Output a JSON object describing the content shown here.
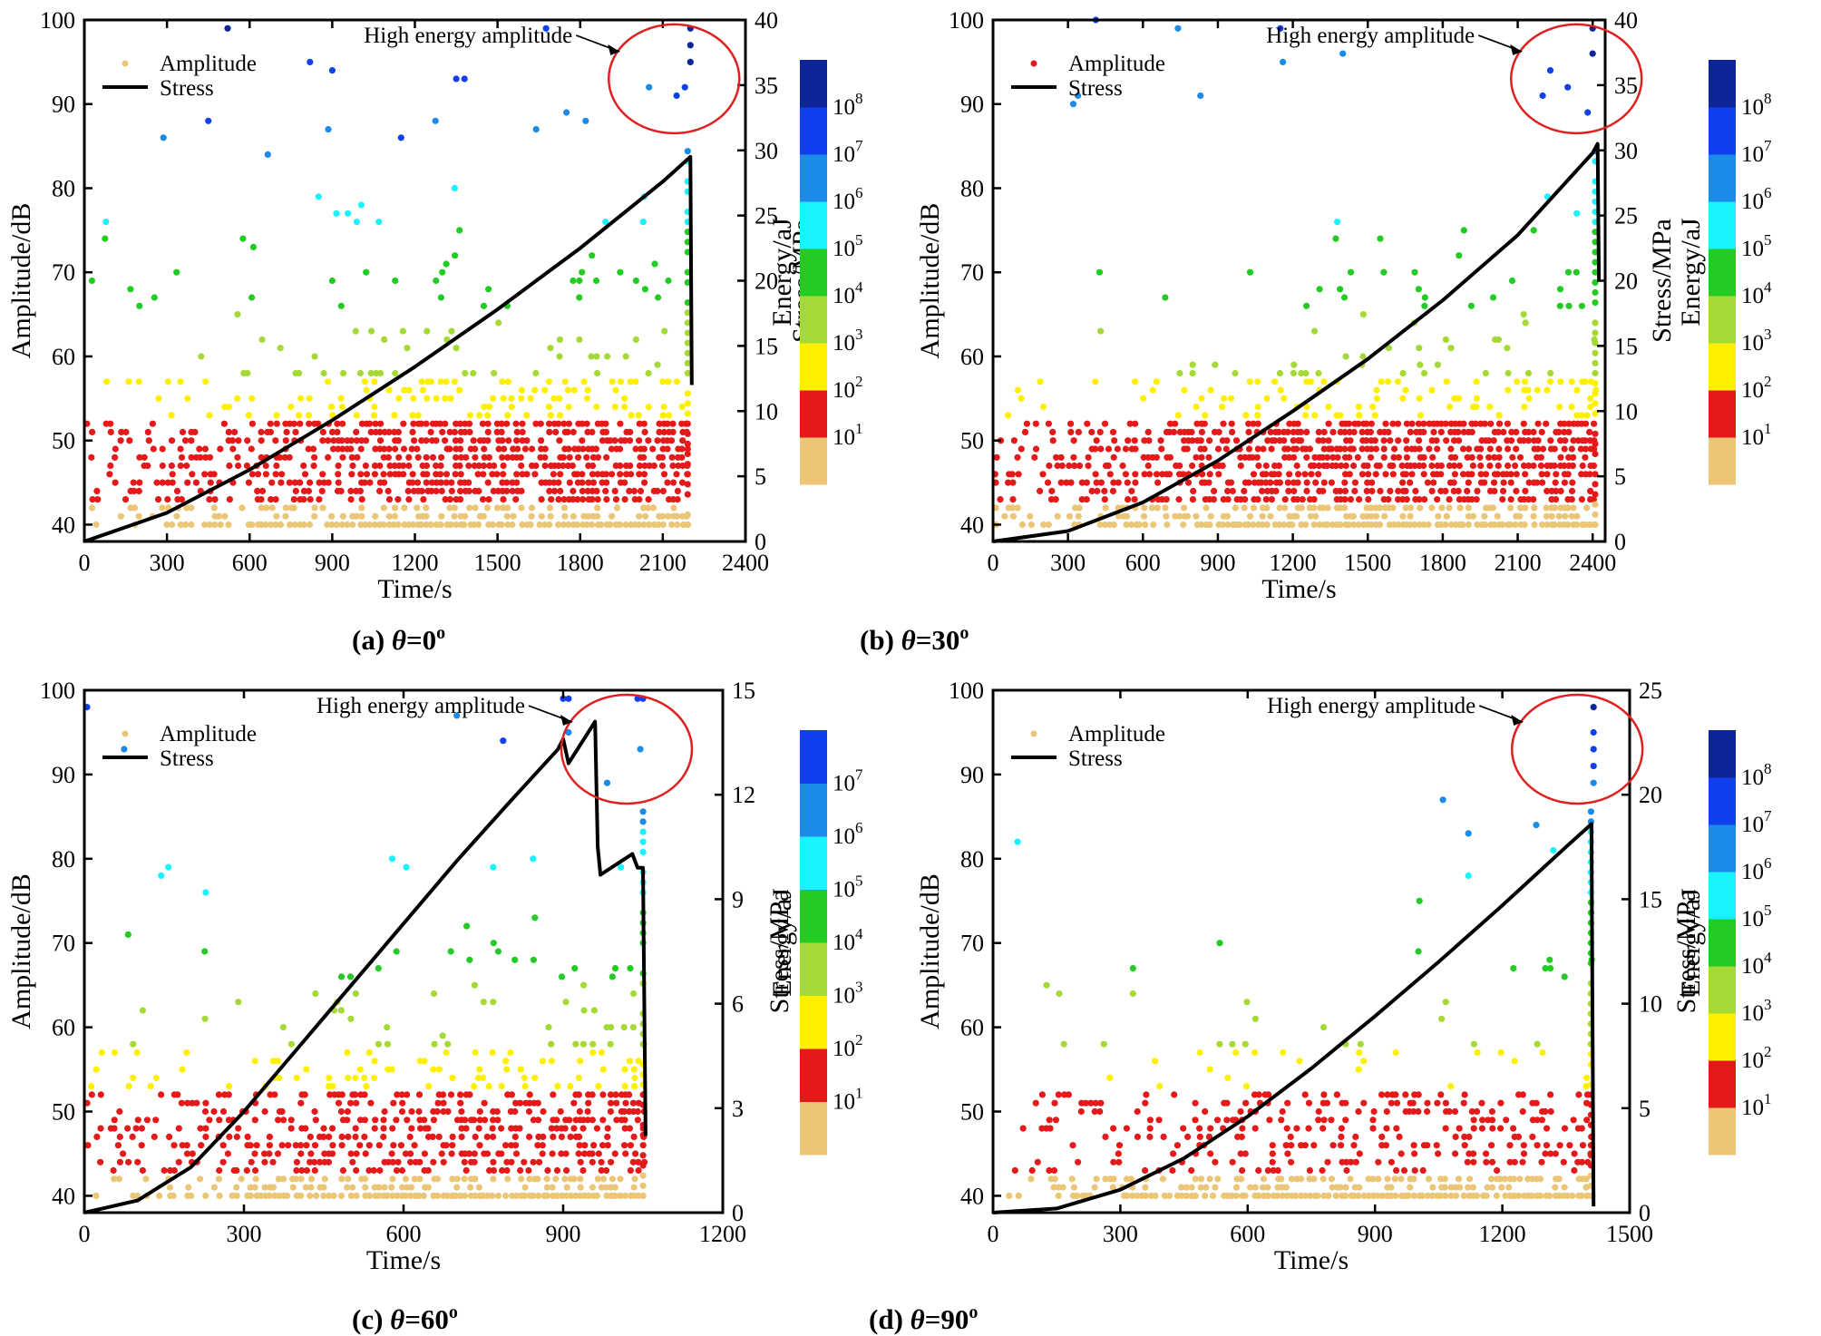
{
  "figure": {
    "energy_colors": [
      "#ebc677",
      "#e41a1a",
      "#fff000",
      "#a5d936",
      "#22cc22",
      "#19f2ff",
      "#1c8ae8",
      "#1040ee",
      "#0c2496"
    ],
    "stress_color": "#000000",
    "annotation_color": "#e02020"
  },
  "chart_data": [
    {
      "type": "scatter",
      "panel_label": "(a) ",
      "theta_symbol": "θ",
      "angle_text": "=0",
      "degree": "o",
      "xlabel": "Time/s",
      "ylabel_left": "Amplitude/dB",
      "ylabel_right": "Stress/MPa",
      "colorbar_label": "Energy/aJ",
      "xlim": [
        0,
        2400
      ],
      "ylim_left": [
        38,
        100
      ],
      "ylim_right": [
        0,
        40
      ],
      "xticks": [
        0,
        300,
        600,
        900,
        1200,
        1500,
        1800,
        2100,
        2400
      ],
      "yticks_left": [
        40,
        50,
        60,
        70,
        80,
        90,
        100
      ],
      "yticks_right": [
        0,
        5,
        10,
        15,
        20,
        25,
        30,
        35,
        40
      ],
      "colorbar_ticks": [
        {
          "base": "10",
          "exp": "1"
        },
        {
          "base": "10",
          "exp": "2"
        },
        {
          "base": "10",
          "exp": "3"
        },
        {
          "base": "10",
          "exp": "4"
        },
        {
          "base": "10",
          "exp": "5"
        },
        {
          "base": "10",
          "exp": "6"
        },
        {
          "base": "10",
          "exp": "7"
        },
        {
          "base": "10",
          "exp": "8"
        }
      ],
      "legend": {
        "amplitude": "Amplitude",
        "stress": "Stress",
        "amplitude_color": "#ebc677"
      },
      "annotation": "High energy amplitude",
      "end_time": 2200,
      "stress_curve": [
        [
          0,
          0
        ],
        [
          300,
          2.2
        ],
        [
          600,
          5.5
        ],
        [
          900,
          9.3
        ],
        [
          1200,
          13.4
        ],
        [
          1500,
          17.8
        ],
        [
          1800,
          22.5
        ],
        [
          2100,
          27.6
        ],
        [
          2200,
          29.5
        ],
        [
          2205,
          12.0
        ]
      ],
      "high_energy_points": [
        [
          520,
          99,
          8
        ],
        [
          900,
          94,
          7
        ],
        [
          450,
          88,
          7
        ],
        [
          1350,
          93,
          7
        ],
        [
          1380,
          93,
          7
        ],
        [
          1150,
          86,
          7
        ],
        [
          1640,
          87,
          6
        ],
        [
          1750,
          89,
          6
        ],
        [
          1820,
          88,
          6
        ],
        [
          2050,
          92,
          6
        ],
        [
          2150,
          91,
          7
        ],
        [
          2180,
          92,
          7
        ],
        [
          2200,
          99,
          8
        ],
        [
          2200,
          97,
          8
        ],
        [
          2200,
          95,
          8
        ]
      ],
      "cloud": {
        "density": 1.0,
        "mid": 0.6,
        "upper": 0.28
      }
    },
    {
      "type": "scatter",
      "panel_label": "(b) ",
      "theta_symbol": "θ",
      "angle_text": "=30",
      "degree": "o",
      "xlabel": "Time/s",
      "ylabel_left": "Amplitude/dB",
      "ylabel_right": "Stress/MPa",
      "colorbar_label": "Energy/aJ",
      "xlim": [
        0,
        2450
      ],
      "ylim_left": [
        38,
        100
      ],
      "ylim_right": [
        0,
        40
      ],
      "xticks": [
        0,
        300,
        600,
        900,
        1200,
        1500,
        1800,
        2100,
        2400
      ],
      "yticks_left": [
        40,
        50,
        60,
        70,
        80,
        90,
        100
      ],
      "yticks_right": [
        0,
        5,
        10,
        15,
        20,
        25,
        30,
        35,
        40
      ],
      "colorbar_ticks": [
        {
          "base": "10",
          "exp": "1"
        },
        {
          "base": "10",
          "exp": "2"
        },
        {
          "base": "10",
          "exp": "3"
        },
        {
          "base": "10",
          "exp": "4"
        },
        {
          "base": "10",
          "exp": "5"
        },
        {
          "base": "10",
          "exp": "6"
        },
        {
          "base": "10",
          "exp": "7"
        },
        {
          "base": "10",
          "exp": "8"
        }
      ],
      "legend": {
        "amplitude": "Amplitude",
        "stress": "Stress",
        "amplitude_color": "#e41a1a"
      },
      "annotation": "High energy amplitude",
      "end_time": 2420,
      "stress_curve": [
        [
          0,
          0
        ],
        [
          300,
          0.8
        ],
        [
          600,
          3.0
        ],
        [
          900,
          6.2
        ],
        [
          1200,
          10.0
        ],
        [
          1500,
          14.0
        ],
        [
          1800,
          18.5
        ],
        [
          2100,
          23.5
        ],
        [
          2400,
          29.8
        ],
        [
          2420,
          30.5
        ],
        [
          2425,
          20.0
        ]
      ],
      "high_energy_points": [
        [
          740,
          99,
          6
        ],
        [
          1150,
          99,
          7
        ],
        [
          1400,
          96,
          6
        ],
        [
          1160,
          95,
          6
        ],
        [
          830,
          91,
          6
        ],
        [
          2200,
          91,
          7
        ],
        [
          2300,
          92,
          7
        ],
        [
          2400,
          99,
          8
        ],
        [
          2400,
          96,
          8
        ],
        [
          2380,
          89,
          7
        ]
      ],
      "cloud": {
        "density": 1.0,
        "mid": 0.5,
        "upper": 0.22
      }
    },
    {
      "type": "scatter",
      "panel_label": "(c) ",
      "theta_symbol": "θ",
      "angle_text": "=60",
      "degree": "o",
      "xlabel": "Time/s",
      "ylabel_left": "Amplitude/dB",
      "ylabel_right": "Stress/MPa",
      "colorbar_label": "Energy/aJ",
      "xlim": [
        0,
        1200
      ],
      "ylim_left": [
        38,
        100
      ],
      "ylim_right": [
        0,
        15
      ],
      "xticks": [
        0,
        300,
        600,
        900,
        1200
      ],
      "yticks_left": [
        40,
        50,
        60,
        70,
        80,
        90,
        100
      ],
      "yticks_right": [
        0,
        3,
        6,
        9,
        12,
        15
      ],
      "colorbar_ticks": [
        {
          "base": "10",
          "exp": "1"
        },
        {
          "base": "10",
          "exp": "2"
        },
        {
          "base": "10",
          "exp": "3"
        },
        {
          "base": "10",
          "exp": "4"
        },
        {
          "base": "10",
          "exp": "5"
        },
        {
          "base": "10",
          "exp": "6"
        },
        {
          "base": "10",
          "exp": "7"
        }
      ],
      "legend": {
        "amplitude": "Amplitude",
        "stress": "Stress",
        "amplitude_color": "#ebc677"
      },
      "annotation": "High energy amplitude",
      "end_time": 1055,
      "stress_curve": [
        [
          0,
          0
        ],
        [
          100,
          0.35
        ],
        [
          200,
          1.3
        ],
        [
          300,
          2.9
        ],
        [
          400,
          4.7
        ],
        [
          500,
          6.5
        ],
        [
          600,
          8.3
        ],
        [
          700,
          10.1
        ],
        [
          800,
          11.8
        ],
        [
          890,
          13.3
        ],
        [
          900,
          13.6
        ],
        [
          910,
          12.9
        ],
        [
          960,
          14.1
        ],
        [
          965,
          10.5
        ],
        [
          970,
          9.7
        ],
        [
          1010,
          10.1
        ],
        [
          1030,
          10.3
        ],
        [
          1040,
          9.9
        ],
        [
          1050,
          9.9
        ],
        [
          1055,
          2.2
        ]
      ],
      "high_energy_points": [
        [
          900,
          99,
          7
        ],
        [
          910,
          99,
          7
        ],
        [
          1040,
          99,
          7
        ],
        [
          1050,
          99,
          7
        ],
        [
          700,
          97,
          6
        ],
        [
          910,
          95,
          6
        ],
        [
          1045,
          93,
          6
        ]
      ],
      "cloud": {
        "density": 0.75,
        "mid": 0.55,
        "upper": 0.3
      }
    },
    {
      "type": "scatter",
      "panel_label": "(d) ",
      "theta_symbol": "θ",
      "angle_text": "=90",
      "degree": "o",
      "xlabel": "Time/s",
      "ylabel_left": "Amplitude/dB",
      "ylabel_right": "Stress/MPa",
      "colorbar_label": "Energy/aJ",
      "xlim": [
        0,
        1500
      ],
      "ylim_left": [
        38,
        100
      ],
      "ylim_right": [
        0,
        25
      ],
      "xticks": [
        0,
        300,
        600,
        900,
        1200,
        1500
      ],
      "yticks_left": [
        40,
        50,
        60,
        70,
        80,
        90,
        100
      ],
      "yticks_right": [
        0,
        5,
        10,
        15,
        20,
        25
      ],
      "colorbar_ticks": [
        {
          "base": "10",
          "exp": "1"
        },
        {
          "base": "10",
          "exp": "2"
        },
        {
          "base": "10",
          "exp": "3"
        },
        {
          "base": "10",
          "exp": "4"
        },
        {
          "base": "10",
          "exp": "5"
        },
        {
          "base": "10",
          "exp": "6"
        },
        {
          "base": "10",
          "exp": "7"
        },
        {
          "base": "10",
          "exp": "8"
        }
      ],
      "legend": {
        "amplitude": "Amplitude",
        "stress": "Stress",
        "amplitude_color": "#ebc677"
      },
      "annotation": "High energy amplitude",
      "end_time": 1415,
      "stress_curve": [
        [
          0,
          0
        ],
        [
          150,
          0.2
        ],
        [
          300,
          1.1
        ],
        [
          450,
          2.6
        ],
        [
          600,
          4.6
        ],
        [
          750,
          6.9
        ],
        [
          900,
          9.4
        ],
        [
          1050,
          12.0
        ],
        [
          1200,
          14.7
        ],
        [
          1350,
          17.5
        ],
        [
          1410,
          18.6
        ],
        [
          1415,
          0.3
        ]
      ],
      "high_energy_points": [
        [
          1415,
          98,
          8
        ],
        [
          1415,
          95,
          7
        ],
        [
          1415,
          93,
          7
        ],
        [
          1415,
          91,
          7
        ],
        [
          1415,
          89,
          6
        ],
        [
          1060,
          87,
          6
        ],
        [
          1120,
          83,
          6
        ],
        [
          1280,
          84,
          6
        ],
        [
          1120,
          78,
          5
        ],
        [
          1320,
          81,
          5
        ]
      ],
      "cloud": {
        "density": 0.45,
        "mid": 0.35,
        "upper": 0.1
      }
    }
  ]
}
